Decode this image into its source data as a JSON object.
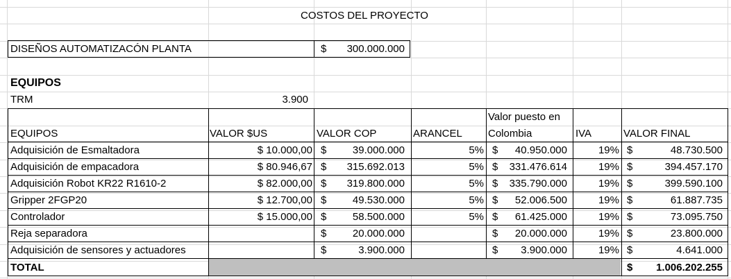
{
  "title": "COSTOS DEL PROYECTO",
  "diseno": {
    "label": "DISEÑOS AUTOMATIZACÓN PLANTA",
    "currency": "$",
    "value": "300.000.000"
  },
  "section_title": "EQUIPOS",
  "trm": {
    "label": "TRM",
    "value": "3.900"
  },
  "headers": {
    "equipos": "EQUIPOS",
    "valor_us": "VALOR $US",
    "valor_cop": "VALOR COP",
    "arancel": "ARANCEL",
    "valor_puesto_1": "Valor puesto en",
    "valor_puesto_2": "Colombia",
    "iva": "IVA",
    "valor_final": "VALOR FINAL"
  },
  "rows": [
    {
      "name": "Adquisición de Esmaltadora",
      "usd": "$ 10.000,00",
      "cop": "39.000.000",
      "arancel": "5%",
      "puesto": "40.950.000",
      "iva": "19%",
      "final": "48.730.500"
    },
    {
      "name": "Adquisición de empacadora",
      "usd": "$ 80.946,67",
      "cop": "315.692.013",
      "arancel": "5%",
      "puesto": "331.476.614",
      "iva": "19%",
      "final": "394.457.170"
    },
    {
      "name": "Adquisición Robot KR22 R1610-2",
      "usd": "$ 82.000,00",
      "cop": "319.800.000",
      "arancel": "5%",
      "puesto": "335.790.000",
      "iva": "19%",
      "final": "399.590.100"
    },
    {
      "name": "Gripper 2FGP20",
      "usd": "$ 12.700,00",
      "cop": "49.530.000",
      "arancel": "5%",
      "puesto": "52.006.500",
      "iva": "19%",
      "final": "61.887.735"
    },
    {
      "name": "Controlador",
      "usd": "$ 15.000,00",
      "cop": "58.500.000",
      "arancel": "5%",
      "puesto": "61.425.000",
      "iva": "19%",
      "final": "73.095.750"
    },
    {
      "name": "Reja separadora",
      "usd": "",
      "cop": "20.000.000",
      "arancel": "",
      "puesto": "20.000.000",
      "iva": "19%",
      "final": "23.800.000"
    },
    {
      "name": "Adquisición de sensores y actuadores",
      "usd": "",
      "cop": "3.900.000",
      "arancel": "",
      "puesto": "3.900.000",
      "iva": "19%",
      "final": "4.641.000"
    }
  ],
  "currency_symbol": "$",
  "total": {
    "label": "TOTAL",
    "currency": "$",
    "value": "1.006.202.255"
  },
  "colors": {
    "gridline": "#d9d9d9",
    "border": "#000000",
    "total_fill": "#bfbfbf"
  }
}
